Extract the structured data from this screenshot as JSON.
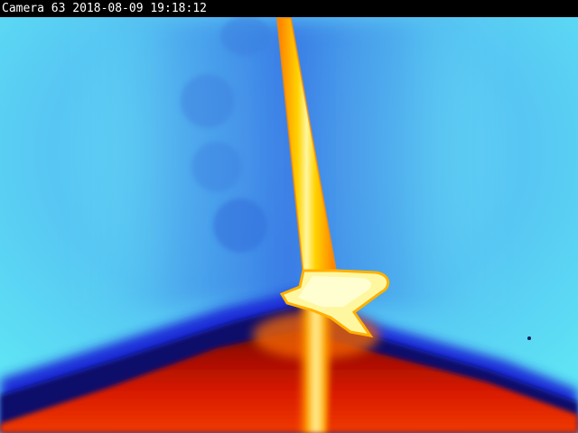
{
  "camera_overlay": {
    "text": "Camera 63 2018-08-09 19:18:12"
  },
  "palette": {
    "cold": "#5fe8f4",
    "cool": "#4aa8ee",
    "cold_shadow": "#1a2fd8",
    "dark_band": "#08106a",
    "warm": "#cc1a00",
    "hot": "#ff8a00",
    "hottest": "#fff7a0"
  }
}
